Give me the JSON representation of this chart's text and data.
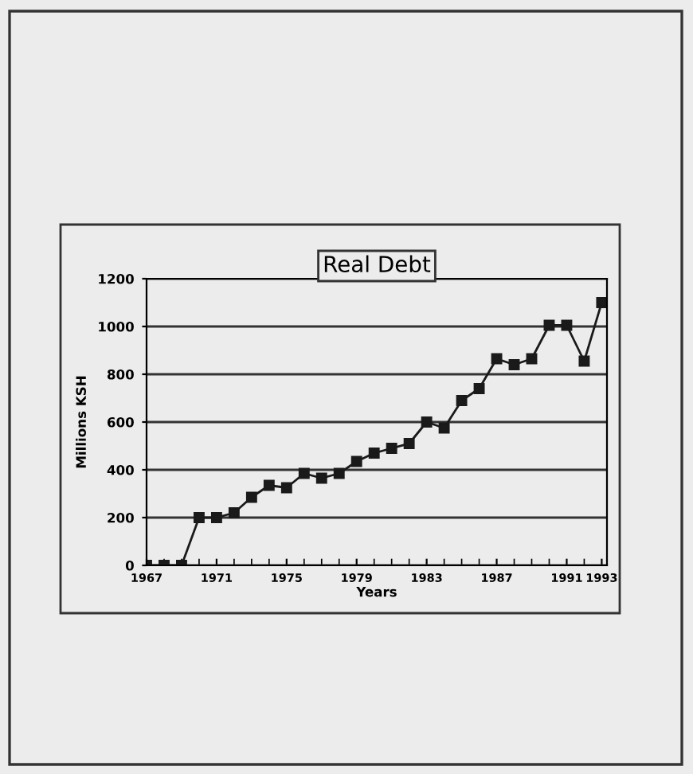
{
  "chart_data": {
    "type": "line",
    "title": "Real Debt",
    "xlabel": "Years",
    "ylabel": "Millions KSH",
    "x": [
      1967,
      1968,
      1969,
      1970,
      1971,
      1972,
      1973,
      1974,
      1975,
      1976,
      1977,
      1978,
      1979,
      1980,
      1981,
      1982,
      1983,
      1984,
      1985,
      1986,
      1987,
      1988,
      1989,
      1990,
      1991,
      1992,
      1993
    ],
    "series": [
      {
        "color": "#1a1a1a",
        "values": [
          0,
          0,
          0,
          200,
          200,
          220,
          285,
          335,
          325,
          385,
          365,
          385,
          435,
          470,
          490,
          510,
          600,
          575,
          690,
          740,
          865,
          840,
          865,
          1005,
          1005,
          855,
          1100
        ]
      }
    ],
    "xlim": [
      1967,
      1993.3
    ],
    "xticks": [
      1967,
      1971,
      1975,
      1979,
      1983,
      1987,
      1991,
      1993
    ],
    "ylim": [
      0,
      1200
    ],
    "yticks": [
      0,
      200,
      400,
      600,
      800,
      1000,
      1200
    ],
    "grid": "y",
    "marker": "square",
    "line_style": "solid"
  }
}
